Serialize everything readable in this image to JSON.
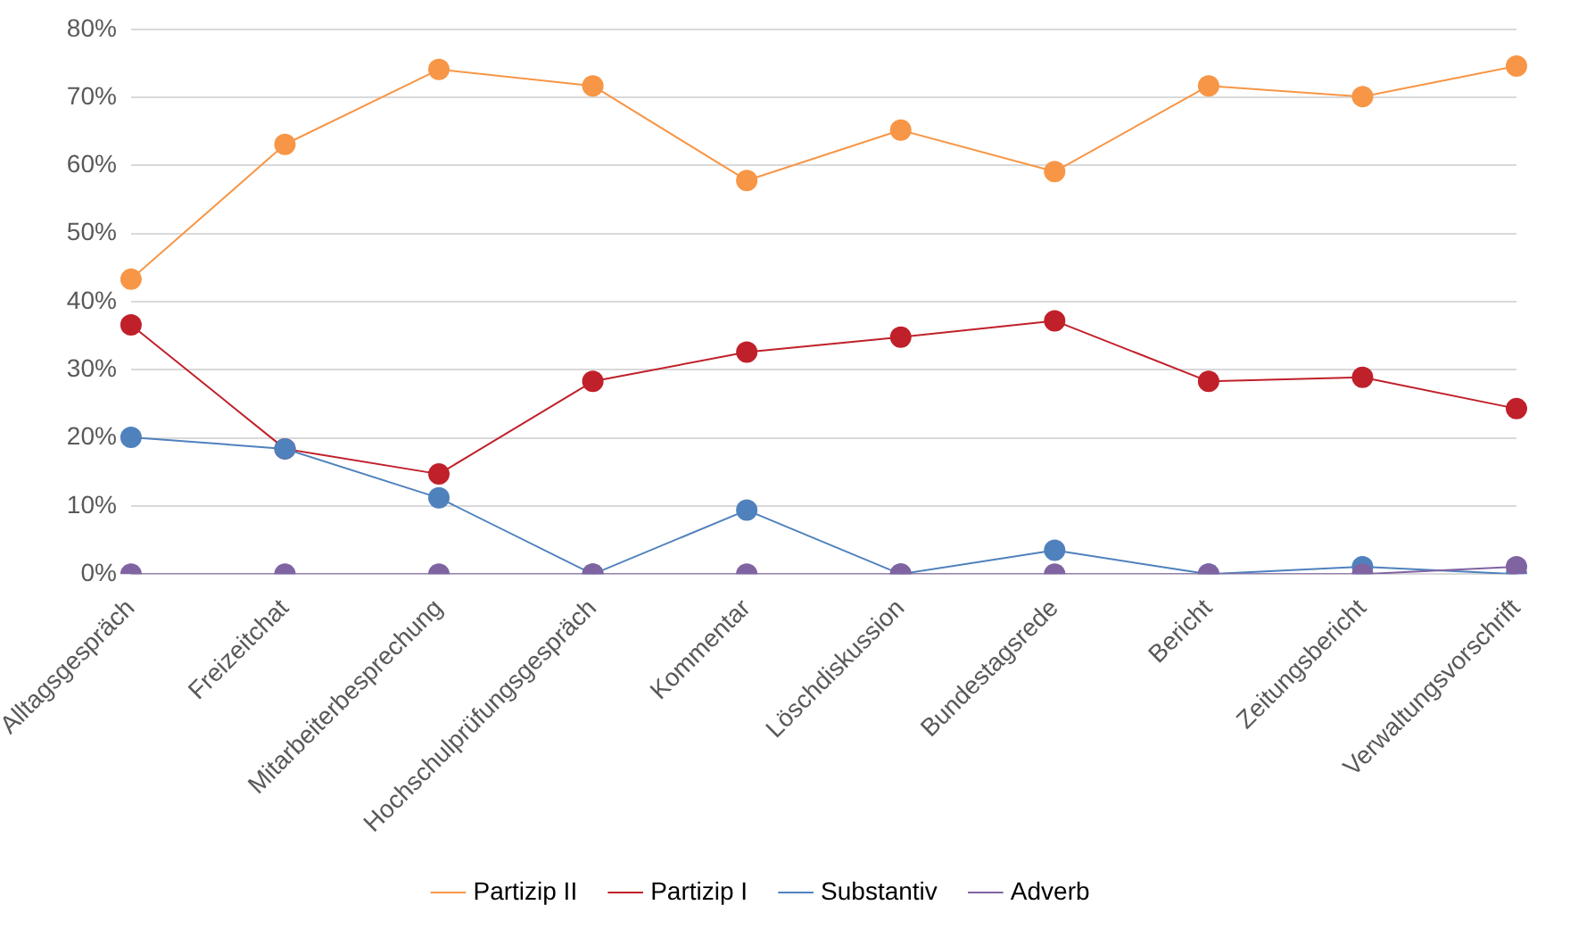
{
  "chart_data": {
    "type": "line",
    "categories": [
      "Alltagsgespräch",
      "Freizeitchat",
      "Mitarbeiterbesprechung",
      "Hochschulprüfungsgespräch",
      "Kommentar",
      "Löschdiskussion",
      "Bundestagsrede",
      "Bericht",
      "Zeitungsbericht",
      "Verwaltungsvorschrift"
    ],
    "series": [
      {
        "name": "Partizip II",
        "color": "#f79646",
        "values": [
          43.3,
          63.1,
          74.1,
          71.7,
          57.8,
          65.2,
          59.1,
          71.7,
          70.1,
          74.6
        ]
      },
      {
        "name": "Partizip I",
        "color": "#c0202a",
        "values": [
          36.6,
          18.4,
          14.7,
          28.3,
          32.6,
          34.8,
          37.2,
          28.3,
          28.9,
          24.3
        ]
      },
      {
        "name": "Substantiv",
        "color": "#4f81bd",
        "values": [
          20.1,
          18.4,
          11.2,
          0,
          9.4,
          0,
          3.5,
          0,
          1.1,
          0
        ]
      },
      {
        "name": "Adverb",
        "color": "#8064a2",
        "values": [
          0,
          0,
          0,
          0,
          0,
          0,
          0,
          0,
          0,
          1.1
        ]
      }
    ],
    "ylim": [
      0,
      80
    ],
    "yticks": [
      {
        "value": 0,
        "label": "0%"
      },
      {
        "value": 10,
        "label": "10%"
      },
      {
        "value": 20,
        "label": "20%"
      },
      {
        "value": 30,
        "label": "30%"
      },
      {
        "value": 40,
        "label": "40%"
      },
      {
        "value": 50,
        "label": "50%"
      },
      {
        "value": 60,
        "label": "60%"
      },
      {
        "value": 70,
        "label": "70%"
      },
      {
        "value": 80,
        "label": "80%"
      }
    ],
    "grid": "y",
    "legend": "bottom",
    "marker": "circle",
    "line_style": "solid"
  }
}
